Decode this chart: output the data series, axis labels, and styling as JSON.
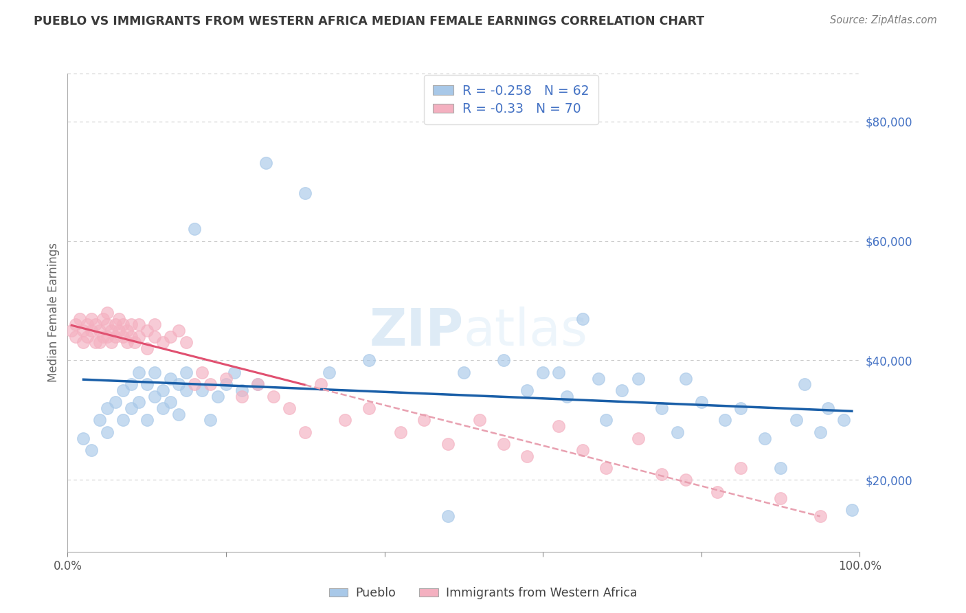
{
  "title": "PUEBLO VS IMMIGRANTS FROM WESTERN AFRICA MEDIAN FEMALE EARNINGS CORRELATION CHART",
  "source_text": "Source: ZipAtlas.com",
  "ylabel": "Median Female Earnings",
  "watermark": "ZIPatlas",
  "xlim": [
    0,
    100
  ],
  "ylim": [
    8000,
    88000
  ],
  "yticks": [
    20000,
    40000,
    60000,
    80000
  ],
  "ytick_labels": [
    "$20,000",
    "$40,000",
    "$60,000",
    "$80,000"
  ],
  "xticks": [
    0,
    20,
    40,
    60,
    80,
    100
  ],
  "xtick_labels": [
    "0.0%",
    "",
    "",
    "",
    "",
    "100.0%"
  ],
  "legend_entries": [
    {
      "label": "Pueblo",
      "color": "#aec6e8",
      "R": -0.258,
      "N": 62
    },
    {
      "label": "Immigrants from Western Africa",
      "color": "#f4b8c8",
      "R": -0.33,
      "N": 70
    }
  ],
  "blue_scatter_color": "#a8c8e8",
  "pink_scatter_color": "#f4b0c0",
  "trend_blue_color": "#1a5fa8",
  "trend_pink_color": "#e05070",
  "trend_pink_dash_color": "#e8a0b0",
  "background_color": "#ffffff",
  "grid_color": "#cccccc",
  "title_color": "#3a3a3a",
  "axis_label_color": "#666666",
  "ytick_color": "#4472c4",
  "source_color": "#808080",
  "pueblo_x": [
    2,
    3,
    4,
    5,
    5,
    6,
    7,
    7,
    8,
    8,
    9,
    9,
    10,
    10,
    11,
    11,
    12,
    12,
    13,
    13,
    14,
    14,
    15,
    15,
    16,
    17,
    18,
    19,
    20,
    21,
    22,
    24,
    25,
    30,
    33,
    38,
    48,
    50,
    55,
    58,
    60,
    62,
    63,
    65,
    67,
    68,
    70,
    72,
    75,
    77,
    78,
    80,
    83,
    85,
    88,
    90,
    92,
    93,
    95,
    96,
    98,
    99
  ],
  "pueblo_y": [
    27000,
    25000,
    30000,
    32000,
    28000,
    33000,
    35000,
    30000,
    32000,
    36000,
    38000,
    33000,
    36000,
    30000,
    38000,
    34000,
    35000,
    32000,
    37000,
    33000,
    36000,
    31000,
    38000,
    35000,
    62000,
    35000,
    30000,
    34000,
    36000,
    38000,
    35000,
    36000,
    73000,
    68000,
    38000,
    40000,
    14000,
    38000,
    40000,
    35000,
    38000,
    38000,
    34000,
    47000,
    37000,
    30000,
    35000,
    37000,
    32000,
    28000,
    37000,
    33000,
    30000,
    32000,
    27000,
    22000,
    30000,
    36000,
    28000,
    32000,
    30000,
    15000
  ],
  "immigrants_x": [
    0.5,
    1,
    1,
    1.5,
    2,
    2,
    2.5,
    2.5,
    3,
    3,
    3.5,
    3.5,
    4,
    4,
    4.5,
    4.5,
    5,
    5,
    5,
    5.5,
    5.5,
    6,
    6,
    6.5,
    6.5,
    7,
    7,
    7.5,
    7.5,
    8,
    8,
    8.5,
    9,
    9,
    10,
    10,
    11,
    11,
    12,
    13,
    14,
    15,
    16,
    17,
    18,
    20,
    22,
    24,
    26,
    28,
    30,
    32,
    35,
    38,
    42,
    45,
    48,
    52,
    55,
    58,
    62,
    65,
    68,
    72,
    75,
    78,
    82,
    85,
    90,
    95
  ],
  "immigrants_y": [
    45000,
    46000,
    44000,
    47000,
    45000,
    43000,
    46000,
    44000,
    47000,
    45000,
    43000,
    46000,
    45000,
    43000,
    47000,
    44000,
    46000,
    44000,
    48000,
    45000,
    43000,
    46000,
    44000,
    47000,
    45000,
    44000,
    46000,
    43000,
    45000,
    46000,
    44000,
    43000,
    46000,
    44000,
    45000,
    42000,
    44000,
    46000,
    43000,
    44000,
    45000,
    43000,
    36000,
    38000,
    36000,
    37000,
    34000,
    36000,
    34000,
    32000,
    28000,
    36000,
    30000,
    32000,
    28000,
    30000,
    26000,
    30000,
    26000,
    24000,
    29000,
    25000,
    22000,
    27000,
    21000,
    20000,
    18000,
    22000,
    17000,
    14000
  ]
}
